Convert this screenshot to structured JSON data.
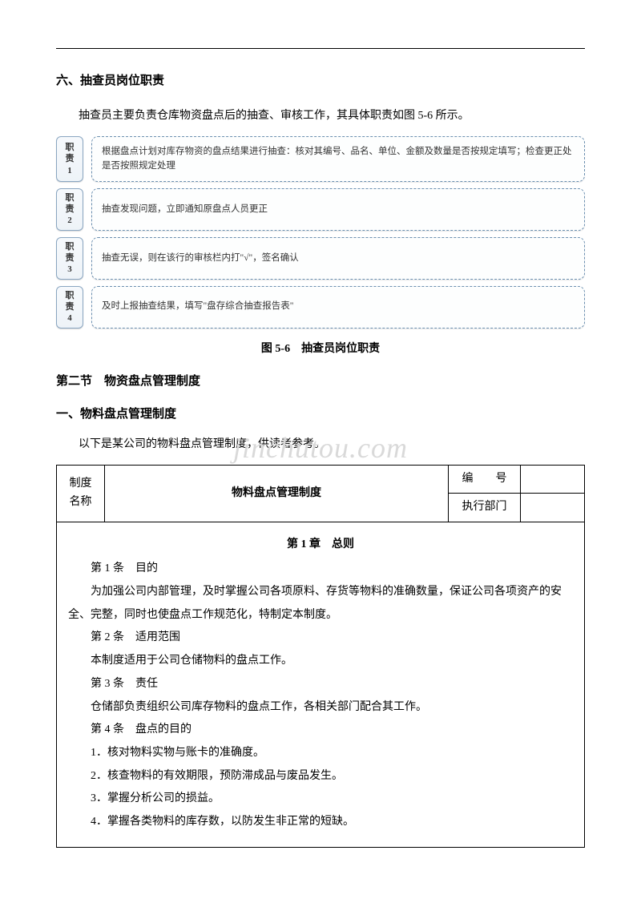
{
  "heading6": "六、抽查员岗位职责",
  "intro": "抽查员主要负责仓库物资盘点后的抽查、审核工作，其具体职责如图 5-6 所示。",
  "duties": [
    {
      "tag_l1": "职",
      "tag_l2": "责",
      "tag_l3": "1",
      "text": "根据盘点计划对库存物资的盘点结果进行抽查：核对其编号、品名、单位、金额及数量是否按规定填写；检查更正处是否按照规定处理"
    },
    {
      "tag_l1": "职",
      "tag_l2": "责",
      "tag_l3": "2",
      "text": "抽查发现问题，立即通知原盘点人员更正"
    },
    {
      "tag_l1": "职",
      "tag_l2": "责",
      "tag_l3": "3",
      "text": "抽查无误，则在该行的审核栏内打\"√\"，签名确认"
    },
    {
      "tag_l1": "职",
      "tag_l2": "责",
      "tag_l3": "4",
      "text": "及时上报抽查结果，填写\"盘存综合抽查报告表\""
    }
  ],
  "fig_caption": "图 5-6　抽查员岗位职责",
  "section2_title": "第二节　物资盘点管理制度",
  "subsection1_title": "一、物料盘点管理制度",
  "subsection1_intro": "以下是某公司的物料盘点管理制度，供读者参考。",
  "watermark": "jinchutou.com",
  "policy": {
    "header": {
      "left_l1": "制度",
      "left_l2": "名称",
      "title": "物料盘点管理制度",
      "code_label": "编　　号",
      "code_value": "",
      "dept_label": "执行部门",
      "dept_value": ""
    },
    "chapter1_title": "第 1 章　总则",
    "articles": [
      "第 1 条　目的",
      "为加强公司内部管理，及时掌握公司各项原料、存货等物料的准确数量，保证公司各项资产的安全、完整，同时也使盘点工作规范化，特制定本制度。",
      "第 2 条　适用范围",
      "本制度适用于公司仓储物料的盘点工作。",
      "第 3 条　责任",
      "仓储部负责组织公司库存物料的盘点工作，各相关部门配合其工作。",
      "第 4 条　盘点的目的",
      "1．核对物料实物与账卡的准确度。",
      "2．核查物料的有效期限，预防滞成品与废品发生。",
      "3．掌握分析公司的损益。",
      "4．掌握各类物料的库存数，以防发生非正常的短缺。"
    ]
  },
  "colors": {
    "tag_border": "#8aa6c1",
    "box_border": "#6b8fb0",
    "watermark": "#d9d9d9",
    "text": "#000000",
    "bg": "#ffffff"
  }
}
